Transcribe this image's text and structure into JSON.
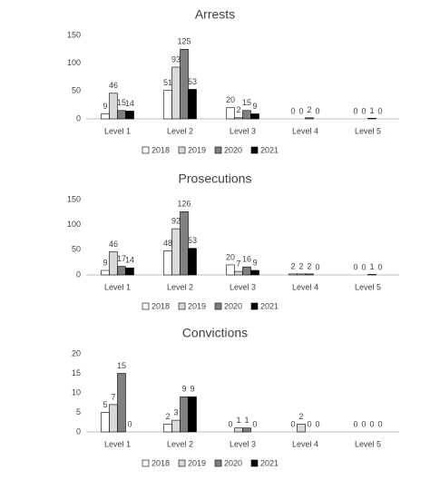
{
  "chart_data": [
    {
      "type": "bar",
      "title": "Arrests",
      "categories": [
        "Level 1",
        "Level 2",
        "Level 3",
        "Level 4",
        "Level 5"
      ],
      "series": [
        {
          "name": "2018",
          "color": "#ffffff",
          "values": [
            9,
            51,
            20,
            0,
            0
          ]
        },
        {
          "name": "2019",
          "color": "#d9d9d9",
          "values": [
            46,
            93,
            2,
            0,
            0
          ]
        },
        {
          "name": "2020",
          "color": "#808080",
          "values": [
            15,
            125,
            15,
            2,
            1
          ]
        },
        {
          "name": "2021",
          "color": "#000000",
          "values": [
            14,
            53,
            9,
            0,
            0
          ]
        }
      ],
      "ylim": [
        0,
        150
      ],
      "yticks": [
        0,
        50,
        100,
        150
      ],
      "grid": false,
      "legend": "bottom"
    },
    {
      "type": "bar",
      "title": "Prosecutions",
      "categories": [
        "Level 1",
        "Level 2",
        "Level 3",
        "Level 4",
        "Level 5"
      ],
      "series": [
        {
          "name": "2018",
          "color": "#ffffff",
          "values": [
            9,
            48,
            20,
            2,
            0
          ]
        },
        {
          "name": "2019",
          "color": "#d9d9d9",
          "values": [
            46,
            92,
            7,
            2,
            0
          ]
        },
        {
          "name": "2020",
          "color": "#808080",
          "values": [
            17,
            126,
            16,
            2,
            1
          ]
        },
        {
          "name": "2021",
          "color": "#000000",
          "values": [
            14,
            53,
            9,
            0,
            0
          ]
        }
      ],
      "ylim": [
        0,
        150
      ],
      "yticks": [
        0,
        50,
        100,
        150
      ],
      "grid": false,
      "legend": "bottom"
    },
    {
      "type": "bar",
      "title": "Convictions",
      "categories": [
        "Level 1",
        "Level 2",
        "Level 3",
        "Level 4",
        "Level 5"
      ],
      "series": [
        {
          "name": "2018",
          "color": "#ffffff",
          "values": [
            5,
            2,
            0,
            0,
            0
          ]
        },
        {
          "name": "2019",
          "color": "#d9d9d9",
          "values": [
            7,
            3,
            1,
            2,
            0
          ]
        },
        {
          "name": "2020",
          "color": "#808080",
          "values": [
            15,
            9,
            1,
            0,
            0
          ]
        },
        {
          "name": "2021",
          "color": "#000000",
          "values": [
            0,
            9,
            0,
            0,
            0
          ]
        }
      ],
      "ylim": [
        0,
        20
      ],
      "yticks": [
        0,
        5,
        10,
        15,
        20
      ],
      "grid": false,
      "legend": "bottom"
    }
  ]
}
